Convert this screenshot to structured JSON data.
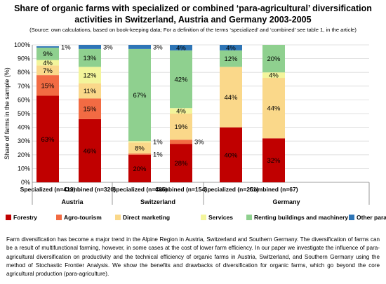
{
  "title_line1": "Share of organic farms with specialized or combined ‘para-agricultural’ diversification",
  "title_line2": "activities in Switzerland, Austria and Germany 2003-2005",
  "source_note": "(Source: own calculations, based on book-keeping data; For a definition of the terms ‘specialized’ and ‘combined’ see table 1, in the article)",
  "chart_data": {
    "type": "bar",
    "stacked": true,
    "ylabel": "Share of farms in the sample (%)",
    "ylim": [
      0,
      100
    ],
    "yticks": [
      "0%",
      "10%",
      "20%",
      "30%",
      "40%",
      "50%",
      "60%",
      "70%",
      "80%",
      "90%",
      "100%"
    ],
    "categories": [
      "Specialized (n=412)",
      "Combined (n=320)",
      "Specialized (n=485)",
      "Combined (n=154)",
      "Specialized (n=251)",
      "Combined (n=67)"
    ],
    "groups": [
      {
        "name": "Austria",
        "categories": [
          0,
          1
        ]
      },
      {
        "name": "Switzerland",
        "categories": [
          2,
          3
        ]
      },
      {
        "name": "Germany",
        "categories": [
          4,
          5
        ]
      }
    ],
    "series": [
      {
        "name": "Forestry",
        "color": "#c00000",
        "values": [
          63,
          46,
          20,
          28,
          40,
          32
        ],
        "labels": [
          "63%",
          "46%",
          "20%",
          "28%",
          "40%",
          "32%"
        ]
      },
      {
        "name": "Agro-tourism",
        "color": "#f26b43",
        "values": [
          15,
          15,
          1,
          3,
          0,
          0
        ],
        "labels": [
          "15%",
          "15%",
          "1%",
          "3%",
          "",
          ""
        ]
      },
      {
        "name": "Direct marketing",
        "color": "#fad88a",
        "values": [
          7,
          11,
          8,
          19,
          44,
          44
        ],
        "labels": [
          "7%",
          "11%",
          "8%",
          "19%",
          "44%",
          "44%"
        ]
      },
      {
        "name": "Services",
        "color": "#f3f59b",
        "values": [
          4,
          12,
          1,
          4,
          0,
          4
        ],
        "labels": [
          "4%",
          "12%",
          "1%",
          "4%",
          "",
          "4%"
        ]
      },
      {
        "name": "Renting buildings and machinery",
        "color": "#8fd08f",
        "values": [
          9,
          13,
          67,
          42,
          12,
          20
        ],
        "labels": [
          "9%",
          "13%",
          "67%",
          "42%",
          "12%",
          "20%"
        ]
      },
      {
        "name": "Other para activities",
        "color": "#2e75b6",
        "values": [
          1,
          3,
          3,
          4,
          4,
          0
        ],
        "labels": [
          "1%",
          "3%",
          "3%",
          "4%",
          "4%",
          ""
        ]
      }
    ],
    "grid": true,
    "legend": "bottom"
  },
  "paragraph": "Farm diversification has become a major trend in the Alpine Region in Austria, Switzerland and Southern Germany. The diversification of farms can be a result of multifunctional farming, however, in some cases at the cost of lower farm efficiency. In our paper we investigate the influence of para-agricultural diversification on productivity and the technical efficiency of organic farms in Austria, Switzerland, and Southern Germany using the method of Stochastic Frontier Analysis. We show the benefits and drawbacks of diversification for organic farms, which go beyond the core agricultural production (para-agriculture)."
}
